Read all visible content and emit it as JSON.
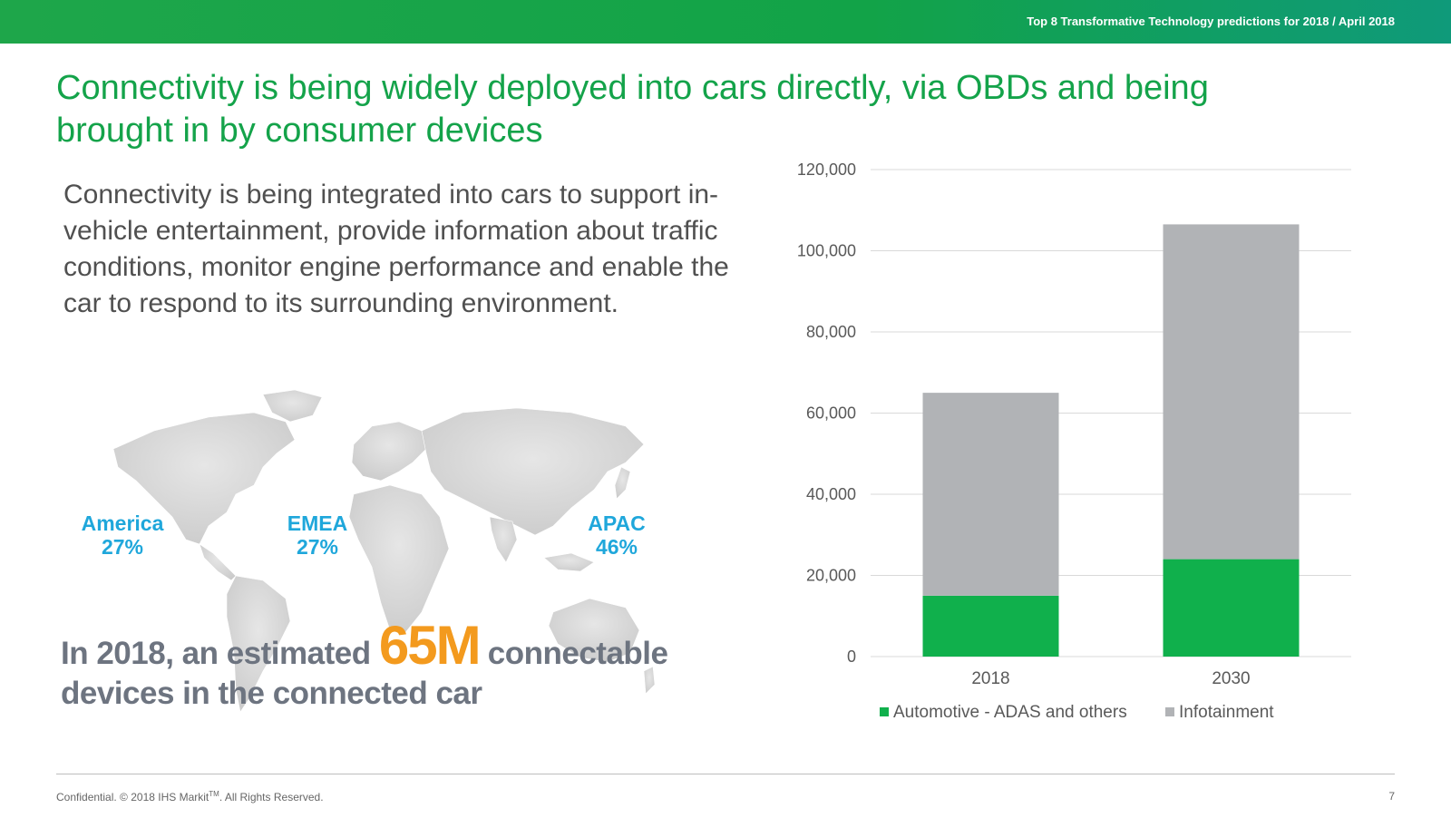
{
  "header": {
    "text": "Top 8 Transformative Technology predictions for 2018 / April 2018"
  },
  "title": "Connectivity is being widely deployed into cars directly, via OBDs and being brought in by consumer devices",
  "body": "Connectivity is being integrated into cars to support in-vehicle entertainment, provide information about traffic conditions, monitor engine performance and enable the car to respond to its surrounding environment.",
  "regions": [
    {
      "name": "America",
      "pct": "27%"
    },
    {
      "name": "EMEA",
      "pct": "27%"
    },
    {
      "name": "APAC",
      "pct": "46%"
    }
  ],
  "callout": {
    "pre": "In 2018, an estimated ",
    "big": "65M",
    "post": " connectable devices in the connected car"
  },
  "footer": {
    "text": "Confidential. © 2018 IHS Markit",
    "tm": "TM",
    "rest": ". All Rights Reserved.",
    "page": "7"
  },
  "colors": {
    "green": "#14a34a",
    "bar_green": "#10b04c",
    "bar_gray": "#b1b3b6",
    "region_blue": "#1fa7db",
    "callout_orange": "#f39a1e"
  },
  "chart_data": {
    "type": "bar",
    "stacked": true,
    "categories": [
      "2018",
      "2030"
    ],
    "series": [
      {
        "name": "Automotive - ADAS and others",
        "values": [
          15000,
          24000
        ],
        "color": "#10b04c"
      },
      {
        "name": "Infotainment",
        "values": [
          50000,
          82500
        ],
        "color": "#b1b3b6"
      }
    ],
    "yticks": [
      "0",
      "20,000",
      "40,000",
      "60,000",
      "80,000",
      "100,000",
      "120,000"
    ],
    "ylim": [
      0,
      120000
    ],
    "grid": true,
    "legend": "bottom"
  }
}
